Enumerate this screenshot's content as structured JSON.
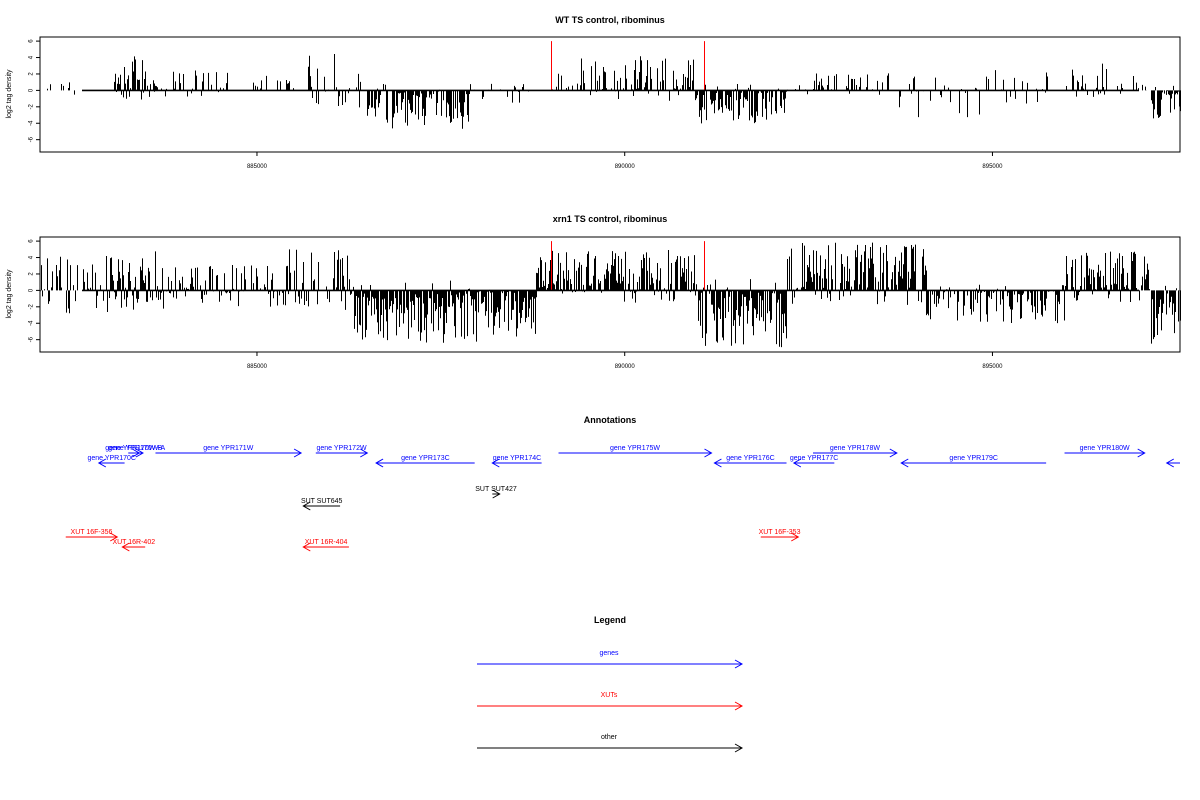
{
  "chart_data": [
    {
      "type": "bar",
      "title": "WT TS control, ribominus",
      "ylabel": "log2 tag density",
      "xlabel": "",
      "xlim": [
        882050,
        897550
      ],
      "ylim": [
        -7.5,
        6.5
      ],
      "yticks": [
        -6,
        -4,
        -2,
        0,
        2,
        4,
        6
      ],
      "xticks": [
        885000,
        890000,
        895000
      ],
      "xtick_labels": [
        "885000",
        "890000",
        "895000"
      ],
      "grid": false,
      "bar_color": "#000000",
      "marker_color": "#ff0000",
      "markers_x": [
        889000,
        891080
      ],
      "markers_y": 6,
      "segments": [
        {
          "from": 882140,
          "to": 882560,
          "ymin": -1.5,
          "ymax": 1.2,
          "density": 0.25,
          "seed": 11
        },
        {
          "from": 883050,
          "to": 883600,
          "ymin": -0.6,
          "ymax": 4.2,
          "density": 0.85,
          "seed": 12
        },
        {
          "from": 883600,
          "to": 884600,
          "ymin": -0.2,
          "ymax": 2.5,
          "density": 0.35,
          "seed": 13
        },
        {
          "from": 884950,
          "to": 885500,
          "ymin": -0.3,
          "ymax": 2.2,
          "density": 0.3,
          "seed": 14
        },
        {
          "from": 885700,
          "to": 886500,
          "ymin": -2.2,
          "ymax": 5.4,
          "density": 0.45,
          "seed": 15
        },
        {
          "from": 886500,
          "to": 887900,
          "ymin": -4.8,
          "ymax": 0.3,
          "density": 0.7,
          "seed": 16
        },
        {
          "from": 887900,
          "to": 888700,
          "ymin": -1.5,
          "ymax": 1.0,
          "density": 0.3,
          "seed": 17
        },
        {
          "from": 889000,
          "to": 891000,
          "ymin": -0.4,
          "ymax": 4.3,
          "density": 0.55,
          "seed": 18
        },
        {
          "from": 891000,
          "to": 892200,
          "ymin": -4.2,
          "ymax": 0.2,
          "density": 0.85,
          "seed": 19
        },
        {
          "from": 892200,
          "to": 893500,
          "ymin": -0.6,
          "ymax": 2.4,
          "density": 0.45,
          "seed": 20
        },
        {
          "from": 893500,
          "to": 895800,
          "ymin": -3.5,
          "ymax": 2.5,
          "density": 0.3,
          "seed": 21
        },
        {
          "from": 896000,
          "to": 896600,
          "ymin": -0.3,
          "ymax": 3.3,
          "density": 0.55,
          "seed": 22
        },
        {
          "from": 896700,
          "to": 897150,
          "ymin": -0.2,
          "ymax": 2.2,
          "density": 0.3,
          "seed": 23
        },
        {
          "from": 897150,
          "to": 897550,
          "ymin": -3.6,
          "ymax": 0.2,
          "density": 0.95,
          "seed": 24
        }
      ]
    },
    {
      "type": "bar",
      "title": "xrn1 TS control, ribominus",
      "ylabel": "log2 tag density",
      "xlabel": "",
      "xlim": [
        882050,
        897550
      ],
      "ylim": [
        -7.5,
        6.5
      ],
      "yticks": [
        -6,
        -4,
        -2,
        0,
        2,
        4,
        6
      ],
      "xticks": [
        885000,
        890000,
        895000
      ],
      "xtick_labels": [
        "885000",
        "890000",
        "895000"
      ],
      "grid": false,
      "bar_color": "#000000",
      "marker_color": "#ff0000",
      "markers_x": [
        889000,
        891080
      ],
      "markers_y": 6,
      "segments": [
        {
          "from": 882050,
          "to": 883050,
          "ymin": -3.0,
          "ymax": 4.2,
          "density": 0.5,
          "seed": 31
        },
        {
          "from": 883050,
          "to": 883800,
          "ymin": -2.5,
          "ymax": 5.2,
          "density": 0.9,
          "seed": 32
        },
        {
          "from": 883800,
          "to": 885300,
          "ymin": -2.0,
          "ymax": 3.2,
          "density": 0.55,
          "seed": 33
        },
        {
          "from": 885300,
          "to": 886300,
          "ymin": -2.5,
          "ymax": 5.0,
          "density": 0.6,
          "seed": 34
        },
        {
          "from": 886300,
          "to": 888800,
          "ymin": -6.5,
          "ymax": 0.3,
          "density": 0.95,
          "seed": 35
        },
        {
          "from": 888800,
          "to": 891000,
          "ymin": -0.6,
          "ymax": 5.0,
          "density": 0.85,
          "seed": 36
        },
        {
          "from": 891000,
          "to": 892200,
          "ymin": -7.0,
          "ymax": 0.2,
          "density": 0.95,
          "seed": 37
        },
        {
          "from": 892200,
          "to": 894100,
          "ymin": -0.6,
          "ymax": 6.0,
          "density": 0.85,
          "seed": 38
        },
        {
          "from": 894100,
          "to": 896000,
          "ymin": -4.0,
          "ymax": 0.4,
          "density": 0.65,
          "seed": 39
        },
        {
          "from": 896000,
          "to": 897150,
          "ymin": -0.5,
          "ymax": 4.8,
          "density": 0.85,
          "seed": 40
        },
        {
          "from": 897150,
          "to": 897550,
          "ymin": -6.5,
          "ymax": 0.3,
          "density": 0.95,
          "seed": 41
        }
      ]
    }
  ],
  "annotations": {
    "title": "Annotations",
    "features": [
      {
        "label": "gene YPR170W-A",
        "color": "#0000ff",
        "strand": "+",
        "start": 883280,
        "end": 883450,
        "row": 0
      },
      {
        "label": "gene YPR170W-B",
        "color": "#0000ff",
        "strand": "+",
        "start": 883250,
        "end": 883400,
        "row": 0
      },
      {
        "label": "gene YPR170C",
        "color": "#0000ff",
        "strand": "-",
        "start": 882850,
        "end": 883200,
        "row": 1
      },
      {
        "label": "gene YPR171W",
        "color": "#0000ff",
        "strand": "+",
        "start": 883620,
        "end": 885600,
        "row": 0
      },
      {
        "label": "gene YPR172W",
        "color": "#0000ff",
        "strand": "+",
        "start": 885800,
        "end": 886500,
        "row": 0
      },
      {
        "label": "gene YPR173C",
        "color": "#0000ff",
        "strand": "-",
        "start": 886620,
        "end": 887960,
        "row": 1
      },
      {
        "label": "gene YPR174C",
        "color": "#0000ff",
        "strand": "-",
        "start": 888200,
        "end": 888870,
        "row": 1
      },
      {
        "label": "gene YPR175W",
        "color": "#0000ff",
        "strand": "+",
        "start": 889100,
        "end": 891180,
        "row": 0
      },
      {
        "label": "gene YPR176C",
        "color": "#0000ff",
        "strand": "-",
        "start": 891220,
        "end": 892200,
        "row": 1
      },
      {
        "label": "gene YPR177C",
        "color": "#0000ff",
        "strand": "-",
        "start": 892300,
        "end": 892850,
        "row": 1
      },
      {
        "label": "gene YPR178W",
        "color": "#0000ff",
        "strand": "+",
        "start": 892560,
        "end": 893700,
        "row": 0
      },
      {
        "label": "gene YPR179C",
        "color": "#0000ff",
        "strand": "-",
        "start": 893760,
        "end": 895730,
        "row": 1
      },
      {
        "label": "gene YPR180W",
        "color": "#0000ff",
        "strand": "+",
        "start": 895980,
        "end": 897070,
        "row": 0
      },
      {
        "label": "",
        "color": "#0000ff",
        "strand": "-",
        "start": 897370,
        "end": 897550,
        "row": 1
      },
      {
        "label": "SUT SUT645",
        "color": "#000000",
        "strand": "-",
        "start": 885630,
        "end": 886130,
        "row": 3
      },
      {
        "label": "SUT SUT427",
        "color": "#000000",
        "strand": "+",
        "start": 888200,
        "end": 888300,
        "row": 2
      },
      {
        "label": "XUT 16F-356",
        "color": "#ff0000",
        "strand": "+",
        "start": 882400,
        "end": 883100,
        "row": 4
      },
      {
        "label": "XUT 16R-402",
        "color": "#ff0000",
        "strand": "-",
        "start": 883170,
        "end": 883480,
        "row": 5
      },
      {
        "label": "XUT 16R-404",
        "color": "#ff0000",
        "strand": "-",
        "start": 885630,
        "end": 886250,
        "row": 5
      },
      {
        "label": "XUT 16F-353",
        "color": "#ff0000",
        "strand": "+",
        "start": 891850,
        "end": 892360,
        "row": 4
      }
    ]
  },
  "legend": {
    "title": "Legend",
    "items": [
      {
        "label": "genes",
        "color": "#0000ff"
      },
      {
        "label": "XUTs",
        "color": "#ff0000"
      },
      {
        "label": "other",
        "color": "#000000"
      }
    ]
  }
}
